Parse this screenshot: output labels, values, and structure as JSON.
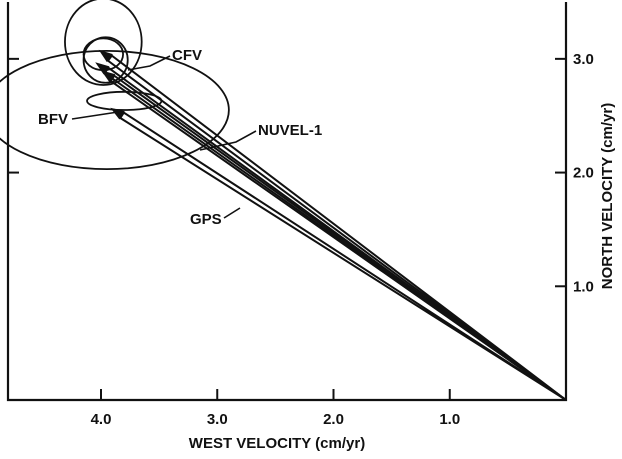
{
  "chart_data": {
    "type": "scatter",
    "title": "",
    "xlabel": "WEST VELOCITY (cm/yr)",
    "ylabel": "NORTH VELOCITY (cm/yr)",
    "xlim": [
      4.8,
      0.0
    ],
    "ylim": [
      0.0,
      3.5
    ],
    "x_reversed": true,
    "x_ticks": [
      4.0,
      3.0,
      2.0,
      1.0
    ],
    "x_tick_labels": [
      "4.0",
      "3.0",
      "2.0",
      "1.0"
    ],
    "y_ticks_left": [
      2.0,
      3.0
    ],
    "y_ticks_right": [
      1.0,
      2.0,
      3.0
    ],
    "y_tick_labels": [
      "1.0",
      "2.0",
      "3.0"
    ],
    "y_axis_position": "right",
    "grid": false,
    "legend": "none",
    "origin": {
      "west": 0.0,
      "north": 0.0
    },
    "vectors": [
      {
        "label": "CFV",
        "west": 4.02,
        "north": 3.08
      },
      {
        "label": "BFV",
        "west": 4.05,
        "north": 2.97
      },
      {
        "label": "NUVEL-1",
        "west": 4.0,
        "north": 2.9
      },
      {
        "label": "GPS",
        "west": 3.92,
        "north": 2.57
      }
    ],
    "error_ellipses": [
      {
        "label": "CFV-outer",
        "center_west": 3.98,
        "center_north": 3.15,
        "semi_west": 0.33,
        "semi_north": 0.38
      },
      {
        "label": "CFV-inner",
        "center_west": 3.98,
        "center_north": 3.04,
        "semi_west": 0.17,
        "semi_north": 0.14
      },
      {
        "label": "CFV-circle",
        "center_west": 3.96,
        "center_north": 2.99,
        "semi_west": 0.19,
        "semi_north": 0.2
      },
      {
        "label": "BFV",
        "center_west": 3.95,
        "center_north": 2.55,
        "semi_west": 1.05,
        "semi_north": 0.52
      },
      {
        "label": "GPS",
        "center_west": 3.8,
        "center_north": 2.63,
        "semi_west": 0.32,
        "semi_north": 0.08
      }
    ],
    "annotations": [
      "CFV",
      "BFV",
      "NUVEL-1",
      "GPS"
    ]
  }
}
